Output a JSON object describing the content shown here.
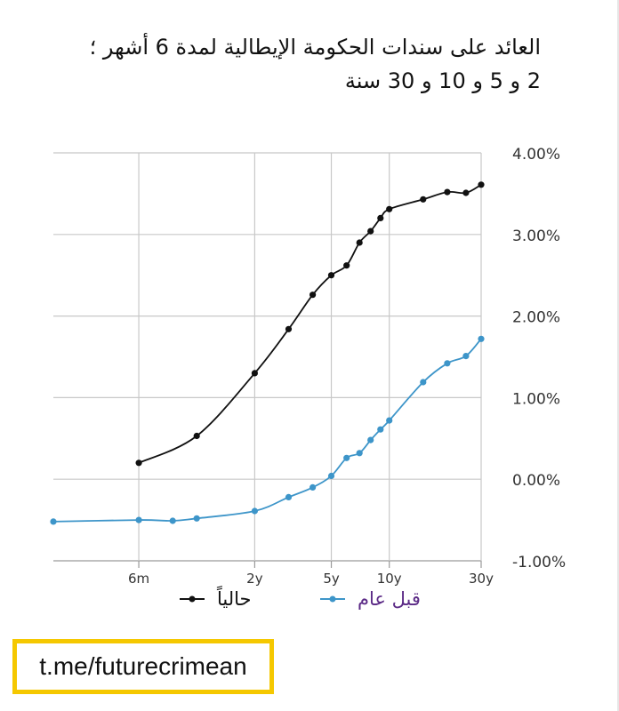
{
  "chart_data": {
    "type": "line",
    "title_lines": [
      "العائد على سندات الحكومة الإيطالية لمدة 6 أشهر ؛",
      "2 و 5 و 10 و 30 سنة"
    ],
    "x_tick_labels": [
      "6m",
      "2y",
      "5y",
      "10y",
      "30y"
    ],
    "x_ticks": [
      0.5,
      2,
      5,
      10,
      30
    ],
    "xlim": [
      0.18,
      30
    ],
    "x_scale": "log",
    "y_tick_labels": [
      "4.00%",
      "3.00%",
      "2.00%",
      "1.00%",
      "0.00%",
      "-1.00%"
    ],
    "ylim": [
      -1.0,
      4.0
    ],
    "grid": true,
    "legend_position": "bottom",
    "series": [
      {
        "name": "حالياً",
        "color": "#111111",
        "x": [
          0.5,
          1,
          2,
          3,
          4,
          5,
          6,
          7,
          8,
          9,
          10,
          15,
          20,
          25,
          30
        ],
        "y": [
          0.2,
          0.53,
          1.3,
          1.84,
          2.26,
          2.5,
          2.62,
          2.9,
          3.04,
          3.2,
          3.31,
          3.43,
          3.52,
          3.51,
          3.61
        ]
      },
      {
        "name": "قبل عام",
        "color": "#3d95c9",
        "x": [
          0.18,
          0.5,
          0.75,
          1,
          2,
          3,
          4,
          5,
          6,
          7,
          8,
          9,
          10,
          15,
          20,
          25,
          30
        ],
        "y": [
          -0.52,
          -0.5,
          -0.51,
          -0.48,
          -0.39,
          -0.22,
          -0.1,
          0.04,
          0.26,
          0.32,
          0.48,
          0.61,
          0.72,
          1.19,
          1.42,
          1.51,
          1.72
        ]
      }
    ]
  },
  "watermark": {
    "text": "t.me/futurecrimean"
  }
}
